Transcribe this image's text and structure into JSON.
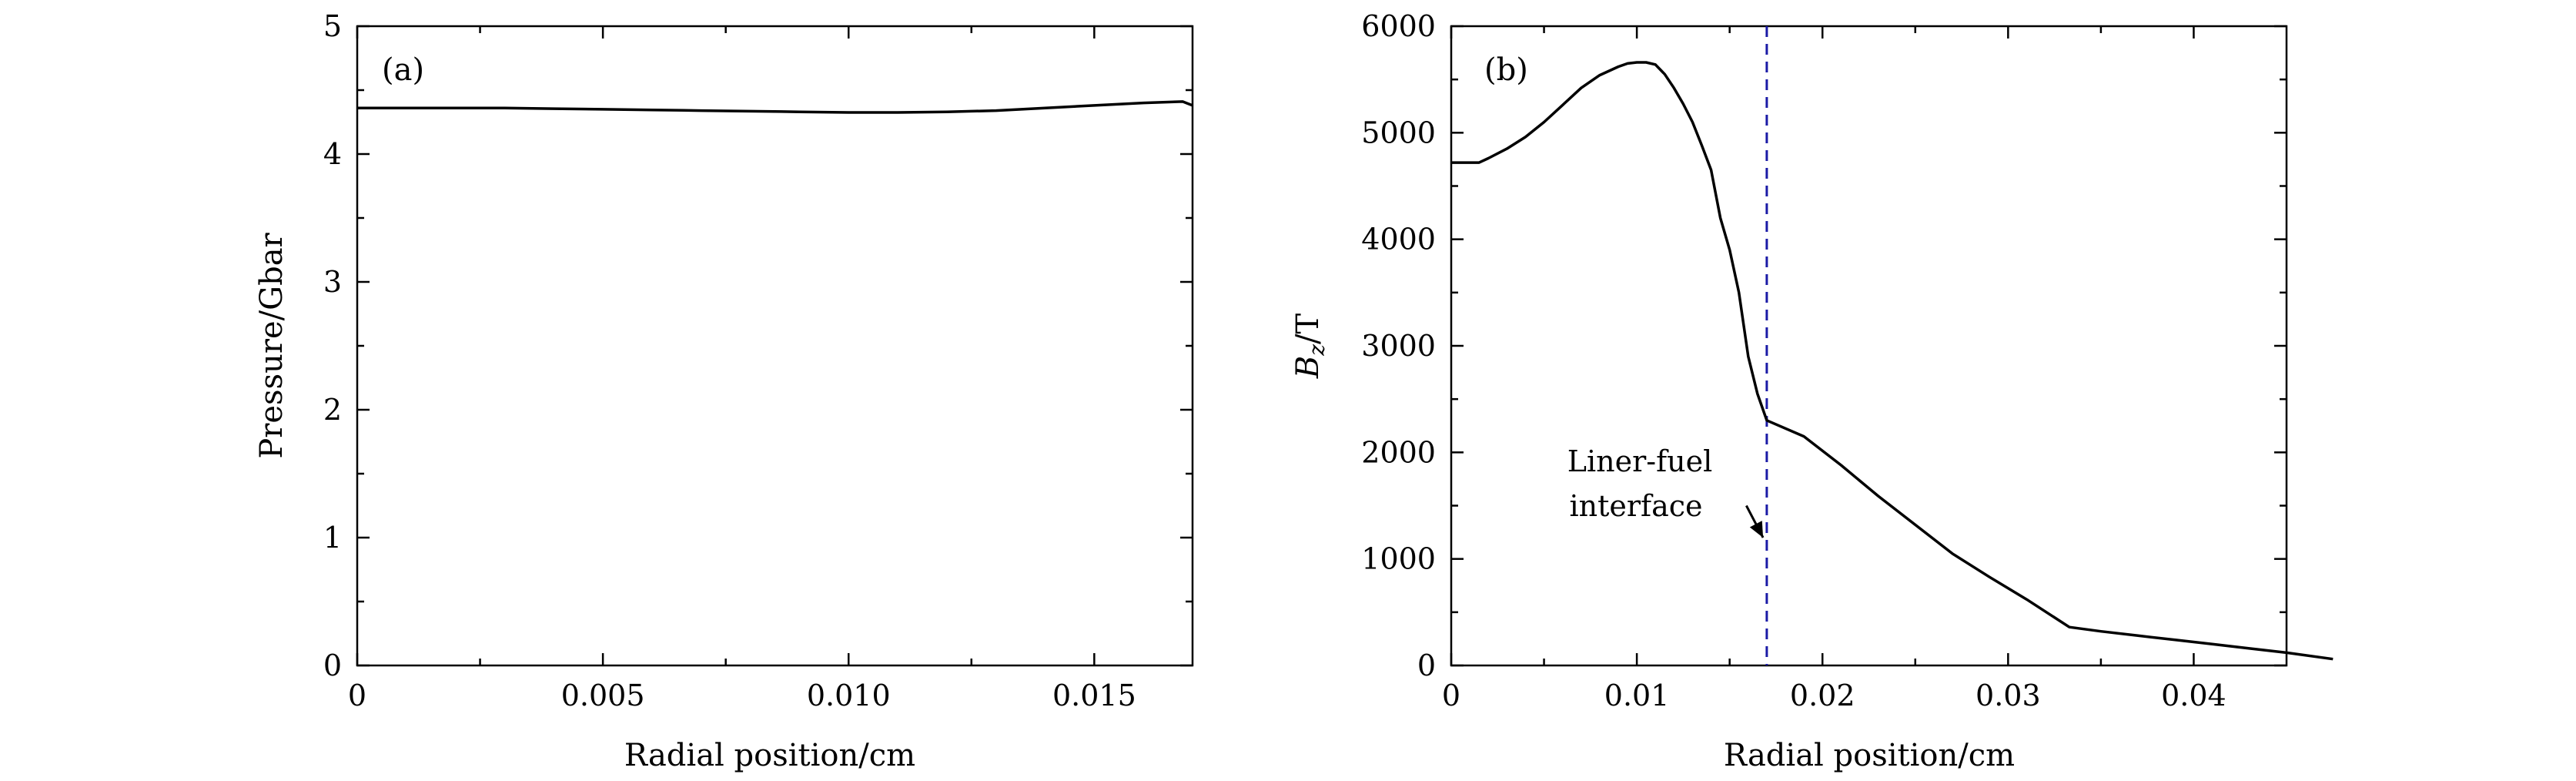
{
  "chart_data": [
    {
      "type": "line",
      "panel_label": "(a)",
      "xlabel": "Radial position/cm",
      "ylabel": "Pressure/Gbar",
      "xlim": [
        0,
        0.017
      ],
      "ylim": [
        0,
        5
      ],
      "x_ticks": [
        0,
        0.005,
        0.01,
        0.015
      ],
      "x_tick_labels": [
        "0",
        "0.005",
        "0.010",
        "0.015"
      ],
      "y_ticks": [
        0,
        1,
        2,
        3,
        4,
        5
      ],
      "y_tick_labels": [
        "0",
        "1",
        "2",
        "3",
        "4",
        "5"
      ],
      "grid": false,
      "series": [
        {
          "x": [
            0,
            0.001,
            0.002,
            0.003,
            0.004,
            0.005,
            0.006,
            0.007,
            0.008,
            0.009,
            0.01,
            0.011,
            0.012,
            0.013,
            0.014,
            0.015,
            0.016,
            0.0168,
            0.017
          ],
          "y": [
            4.36,
            4.36,
            4.36,
            4.36,
            4.355,
            4.35,
            4.345,
            4.34,
            4.335,
            4.33,
            4.325,
            4.325,
            4.33,
            4.34,
            4.36,
            4.38,
            4.4,
            4.41,
            4.38
          ]
        }
      ]
    },
    {
      "type": "line",
      "panel_label": "(b)",
      "xlabel": "Radial position/cm",
      "ylabel_main": "B",
      "ylabel_sub": "z",
      "ylabel_rest": "/T",
      "xlim": [
        0,
        0.045
      ],
      "ylim": [
        0,
        6000
      ],
      "x_ticks": [
        0,
        0.01,
        0.02,
        0.03,
        0.04
      ],
      "x_tick_labels": [
        "0",
        "0.01",
        "0.02",
        "0.03",
        "0.04"
      ],
      "y_ticks": [
        0,
        1000,
        2000,
        3000,
        4000,
        5000,
        6000
      ],
      "y_tick_labels": [
        "0",
        "1000",
        "2000",
        "3000",
        "4000",
        "5000",
        "6000"
      ],
      "grid": false,
      "interface_x": 0.017,
      "annotation": {
        "lines": [
          "Liner-fuel",
          "interface"
        ],
        "arrow_tip": [
          0.0168,
          1200
        ],
        "arrow_tail": [
          0.0159,
          1500
        ]
      },
      "series": [
        {
          "x": [
            0,
            0.0015,
            0.002,
            0.003,
            0.004,
            0.005,
            0.006,
            0.007,
            0.008,
            0.009,
            0.0095,
            0.01,
            0.0105,
            0.011,
            0.0115,
            0.012,
            0.0125,
            0.013,
            0.0135,
            0.014,
            0.0145,
            0.015,
            0.0155,
            0.016,
            0.0165,
            0.017,
            0.019,
            0.021,
            0.023,
            0.025,
            0.027,
            0.029,
            0.031,
            0.0333,
            0.035,
            0.037,
            0.039,
            0.041,
            0.043,
            0.045,
            0.0475
          ],
          "y": [
            4720,
            4720,
            4760,
            4850,
            4960,
            5100,
            5260,
            5420,
            5540,
            5620,
            5650,
            5660,
            5660,
            5640,
            5550,
            5420,
            5270,
            5100,
            4880,
            4650,
            4200,
            3900,
            3500,
            2900,
            2550,
            2300,
            2150,
            1880,
            1590,
            1320,
            1050,
            830,
            620,
            360,
            320,
            280,
            240,
            200,
            160,
            120,
            60
          ]
        }
      ]
    }
  ]
}
